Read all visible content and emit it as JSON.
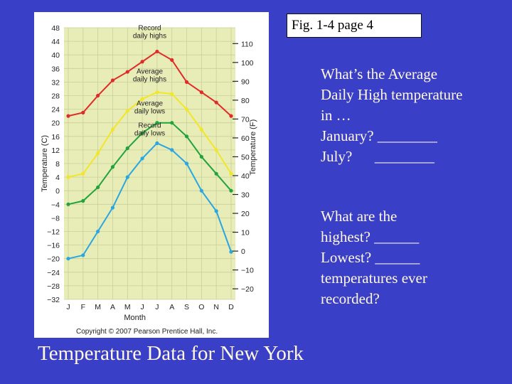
{
  "fig_label": "Fig. 1-4 page 4",
  "questions": {
    "block1": [
      "What’s the Average",
      "Daily High temperature",
      "in …",
      "January? ________",
      "July?      ________"
    ],
    "block2": [
      "What are the",
      "highest? ______",
      "Lowest? ______",
      "temperatures ever",
      "recorded?"
    ]
  },
  "footer_title": "Temperature Data for New York",
  "copyright": "Copyright © 2007 Pearson Prentice Hall, Inc.",
  "colors": {
    "slide_background": "#3a3fc8",
    "plot_background": "#e8edb8",
    "record_highs": "#e02b2b",
    "average_highs": "#f2e62a",
    "average_lows": "#23a33c",
    "record_lows": "#2aa6e0",
    "text_cream": "#fff8dc"
  },
  "chart_data": {
    "type": "line",
    "categories": [
      "J",
      "F",
      "M",
      "A",
      "M",
      "J",
      "J",
      "A",
      "S",
      "O",
      "N",
      "D"
    ],
    "xlabel": "Month",
    "ylabel": "Temperature (C)",
    "ylim": [
      -32,
      48
    ],
    "yticks": [
      48,
      44,
      40,
      36,
      32,
      28,
      24,
      20,
      16,
      12,
      8,
      4,
      0,
      -4,
      -8,
      -12,
      -16,
      -20,
      -24,
      -28,
      -32
    ],
    "y2label": "Temperature (F)",
    "y2ticks": [
      110,
      100,
      90,
      80,
      70,
      60,
      50,
      40,
      30,
      20,
      10,
      0,
      -10,
      -20
    ],
    "grid": true,
    "series": [
      {
        "name": "Record daily highs",
        "label_lines": [
          "Record",
          "daily highs"
        ],
        "color": "#e02b2b",
        "values": [
          22,
          23,
          28,
          32.5,
          35,
          38,
          41,
          38.5,
          32,
          29,
          26,
          22
        ]
      },
      {
        "name": "Average daily highs",
        "label_lines": [
          "Average",
          "daily highs"
        ],
        "color": "#f2e62a",
        "values": [
          4,
          5,
          11,
          18,
          23.5,
          27,
          29,
          28.5,
          24,
          18,
          12,
          5
        ]
      },
      {
        "name": "Average daily lows",
        "label_lines": [
          "Average",
          "daily lows"
        ],
        "color": "#23a33c",
        "values": [
          -4,
          -3,
          1,
          7,
          12.5,
          17,
          20,
          20,
          16,
          10,
          5,
          0
        ]
      },
      {
        "name": "Record daily lows",
        "label_lines": [
          "Record",
          "daily lows"
        ],
        "color": "#2aa6e0",
        "values": [
          -20,
          -19,
          -12,
          -5,
          4,
          9.5,
          14,
          12,
          8,
          0,
          -6,
          -18
        ]
      }
    ]
  }
}
